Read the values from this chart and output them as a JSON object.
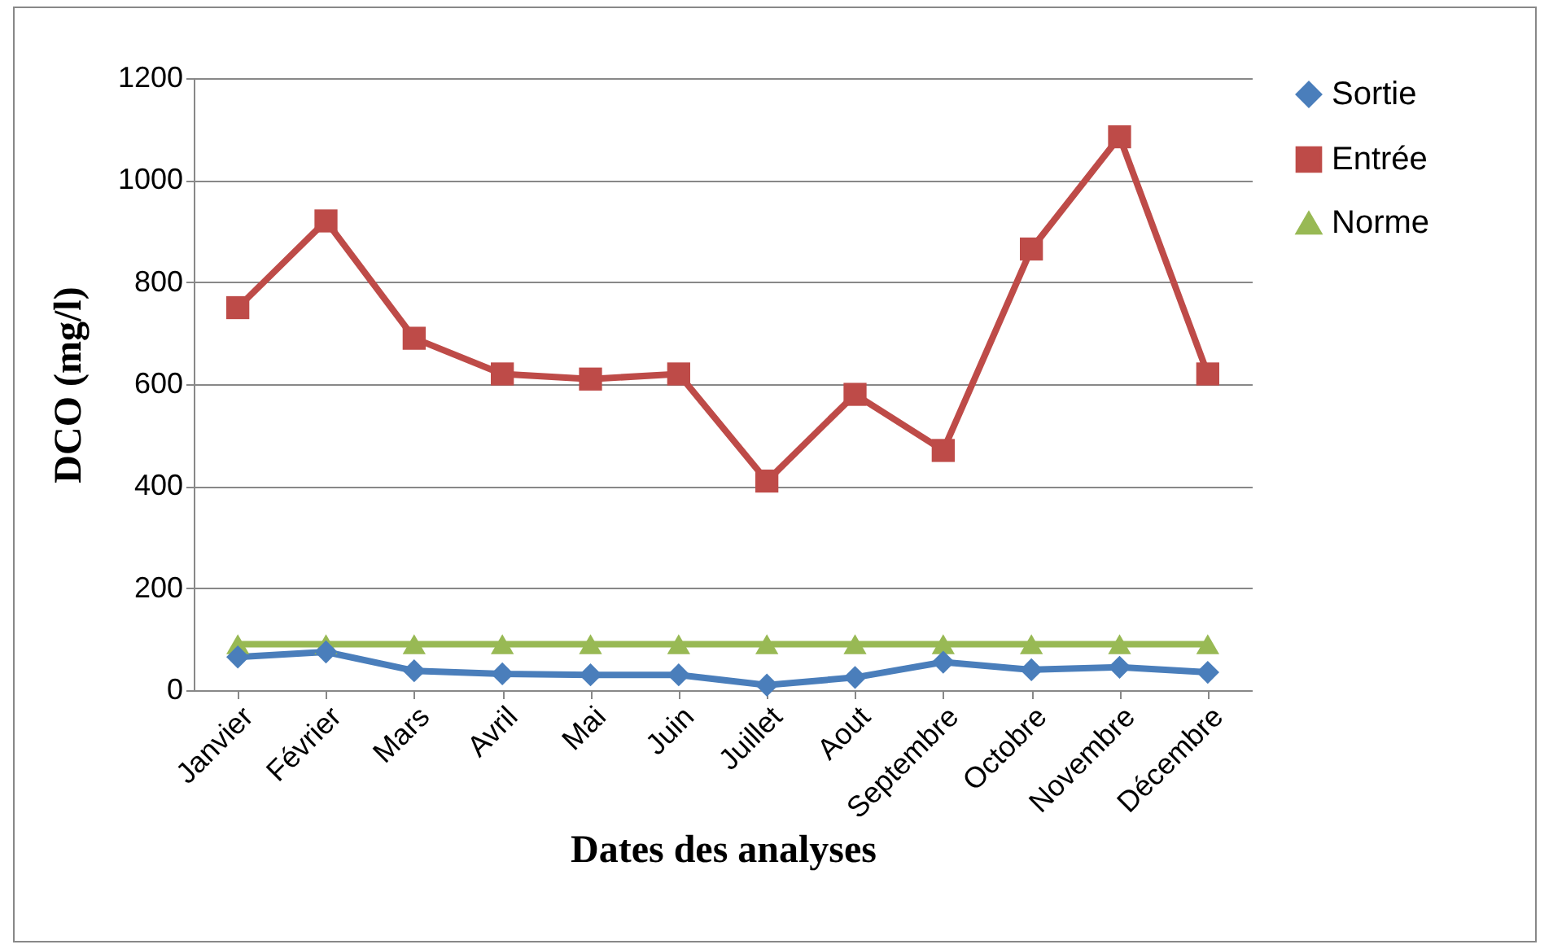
{
  "chart_data": {
    "type": "line",
    "xlabel": "Dates des analyses",
    "ylabel": "DCO (mg/l)",
    "categories": [
      "Janvier",
      "Février",
      "Mars",
      "Avril",
      "Mai",
      "Juin",
      "Juillet",
      "Aout",
      "Septembre",
      "Octobre",
      "Novembre",
      "Décembre"
    ],
    "series": [
      {
        "name": "Sortie",
        "color": "#4a7ebb",
        "marker": "diamond",
        "values": [
          65,
          75,
          38,
          32,
          30,
          30,
          10,
          25,
          55,
          40,
          45,
          35
        ]
      },
      {
        "name": "Entrée",
        "color": "#be4b48",
        "marker": "square",
        "values": [
          750,
          920,
          690,
          620,
          610,
          620,
          410,
          580,
          470,
          865,
          1085,
          620
        ]
      },
      {
        "name": "Norme",
        "color": "#98b954",
        "marker": "triangle",
        "values": [
          90,
          90,
          90,
          90,
          90,
          90,
          90,
          90,
          90,
          90,
          90,
          90
        ]
      }
    ],
    "ylim": [
      0,
      1200
    ],
    "yticks": [
      0,
      200,
      400,
      600,
      800,
      1000,
      1200
    ],
    "grid": "y",
    "legend": "right",
    "line_style": "solid"
  }
}
